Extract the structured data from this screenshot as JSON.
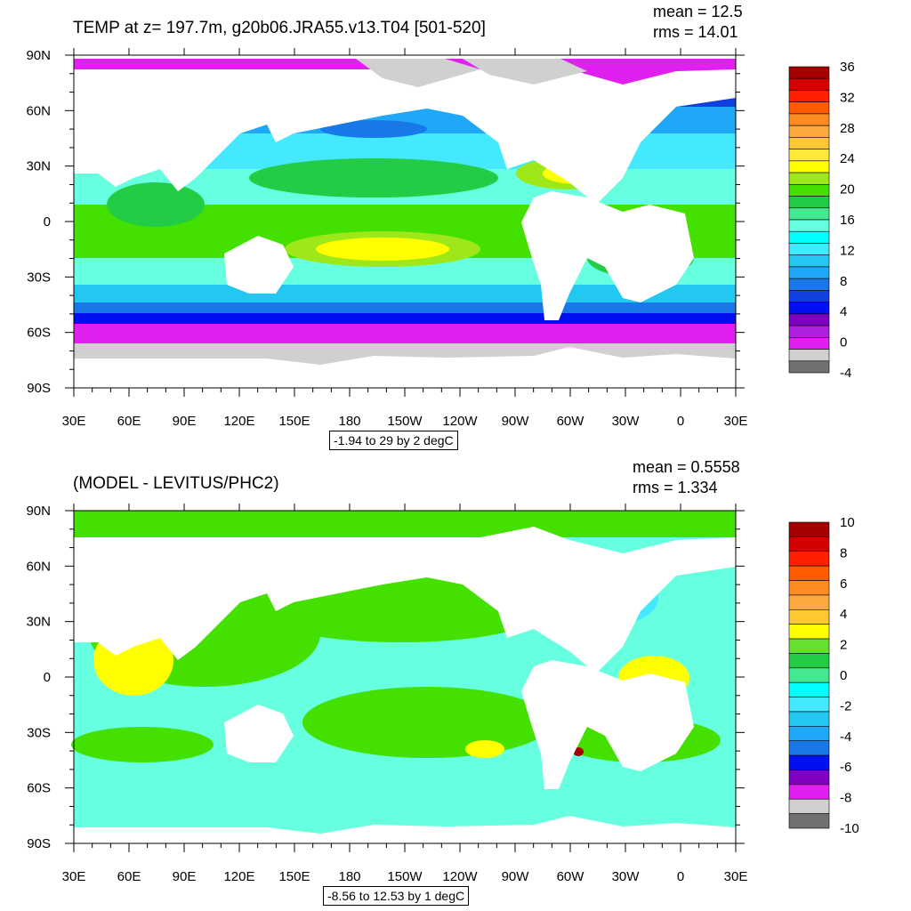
{
  "chart_data": [
    {
      "type": "heatmap",
      "title": "TEMP at z= 197.7m, g20b06.JRA55.v13.T04 [501-520]",
      "stats": {
        "mean": "mean = 12.5",
        "rms": "rms = 14.01"
      },
      "contour_label": "-1.94 to 29 by 2 degC",
      "x_ticks": [
        "30E",
        "60E",
        "90E",
        "120E",
        "150E",
        "180",
        "150W",
        "120W",
        "90W",
        "60W",
        "30W",
        "0",
        "30E"
      ],
      "y_ticks": [
        "90N",
        "60N",
        "30N",
        "0",
        "30S",
        "60S",
        "90S"
      ],
      "colorbar": {
        "labels": [
          "36",
          "32",
          "28",
          "24",
          "20",
          "16",
          "12",
          "8",
          "4",
          "0",
          "-4"
        ],
        "colors": [
          "#a50000",
          "#d40000",
          "#ff2000",
          "#ff5c00",
          "#ff8c20",
          "#ffa840",
          "#ffc830",
          "#ffe838",
          "#ffff00",
          "#9ee81a",
          "#44e000",
          "#22cc44",
          "#44e890",
          "#66ffe0",
          "#00ffff",
          "#44e8ff",
          "#22c8f0",
          "#20a8f8",
          "#1878e8",
          "#1040e0",
          "#0010f0",
          "#8000c0",
          "#b020e0",
          "#e020f0",
          "#d0d0d0",
          "#707070"
        ]
      }
    },
    {
      "type": "heatmap",
      "title": "(MODEL - LEVITUS/PHC2)",
      "stats": {
        "mean": "mean = 0.5558",
        "rms": "rms = 1.334"
      },
      "contour_label": "-8.56 to 12.53 by 1 degC",
      "x_ticks": [
        "30E",
        "60E",
        "90E",
        "120E",
        "150E",
        "180",
        "150W",
        "120W",
        "90W",
        "60W",
        "30W",
        "0",
        "30E"
      ],
      "y_ticks": [
        "90N",
        "60N",
        "30N",
        "0",
        "30S",
        "60S",
        "90S"
      ],
      "colorbar": {
        "labels": [
          "10",
          "8",
          "6",
          "4",
          "2",
          "0",
          "-2",
          "-4",
          "-6",
          "-8",
          "-10"
        ],
        "colors": [
          "#a50000",
          "#d40000",
          "#ff2000",
          "#ff5c00",
          "#ff8c20",
          "#ffa840",
          "#ffc830",
          "#ffff00",
          "#66e030",
          "#22cc44",
          "#44e890",
          "#00ffff",
          "#44e8ff",
          "#22c8f0",
          "#20a8f8",
          "#1878e8",
          "#0010f0",
          "#8000c0",
          "#e020f0",
          "#d0d0d0",
          "#707070"
        ]
      }
    }
  ]
}
